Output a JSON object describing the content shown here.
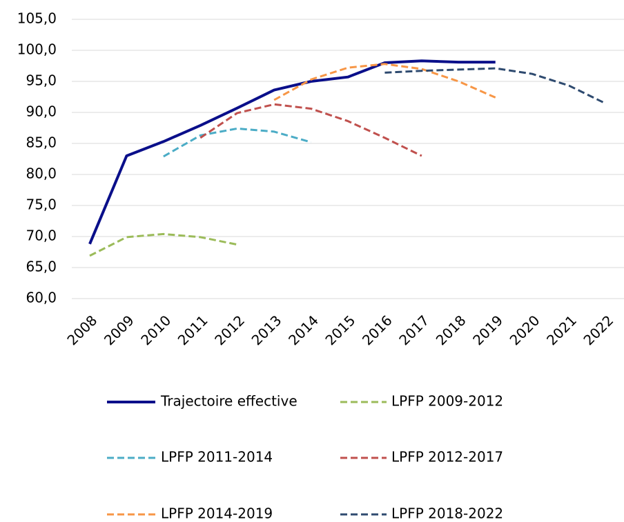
{
  "chart_data": {
    "type": "line",
    "categories": [
      "2008",
      "2009",
      "2010",
      "2011",
      "2012",
      "2013",
      "2014",
      "2015",
      "2016",
      "2017",
      "2018",
      "2019",
      "2020",
      "2021",
      "2022"
    ],
    "series": [
      {
        "name": "Trajectoire effective",
        "color": "#0a0f8a",
        "dashed": false,
        "values": [
          68.8,
          83.0,
          85.3,
          87.9,
          90.7,
          93.6,
          95.0,
          95.7,
          98.0,
          98.3,
          98.1,
          98.1,
          null,
          null,
          null
        ]
      },
      {
        "name": "LPFP 2009-2012",
        "color": "#9bbb59",
        "dashed": true,
        "values": [
          66.9,
          69.9,
          70.4,
          69.9,
          68.7,
          null,
          null,
          null,
          null,
          null,
          null,
          null,
          null,
          null,
          null
        ]
      },
      {
        "name": "LPFP 2011-2014",
        "color": "#4bacc6",
        "dashed": true,
        "values": [
          null,
          null,
          82.9,
          86.3,
          87.4,
          86.9,
          85.2,
          null,
          null,
          null,
          null,
          null,
          null,
          null,
          null
        ]
      },
      {
        "name": "LPFP 2012-2017",
        "color": "#c0504d",
        "dashed": true,
        "values": [
          null,
          null,
          null,
          85.9,
          89.9,
          91.3,
          90.6,
          88.6,
          85.9,
          83.0,
          null,
          null,
          null,
          null,
          null
        ]
      },
      {
        "name": "LPFP 2014-2019",
        "color": "#f79646",
        "dashed": true,
        "values": [
          null,
          null,
          null,
          null,
          null,
          92.0,
          95.3,
          97.2,
          97.8,
          97.0,
          95.0,
          92.4,
          null,
          null,
          null
        ]
      },
      {
        "name": "LPFP 2018-2022",
        "color": "#2e4a6f",
        "dashed": true,
        "values": [
          null,
          null,
          null,
          null,
          null,
          null,
          null,
          null,
          96.4,
          96.7,
          96.9,
          97.1,
          96.2,
          94.3,
          91.4
        ]
      }
    ],
    "ylim": [
      60,
      105
    ],
    "yticks": [
      {
        "value": 60,
        "label": "60,0"
      },
      {
        "value": 65,
        "label": "65,0"
      },
      {
        "value": 70,
        "label": "70,0"
      },
      {
        "value": 75,
        "label": "75,0"
      },
      {
        "value": 80,
        "label": "80,0"
      },
      {
        "value": 85,
        "label": "85,0"
      },
      {
        "value": 90,
        "label": "90,0"
      },
      {
        "value": 95,
        "label": "95,0"
      },
      {
        "value": 100,
        "label": "100,0"
      },
      {
        "value": 105,
        "label": "105,0"
      }
    ],
    "grid": true
  }
}
